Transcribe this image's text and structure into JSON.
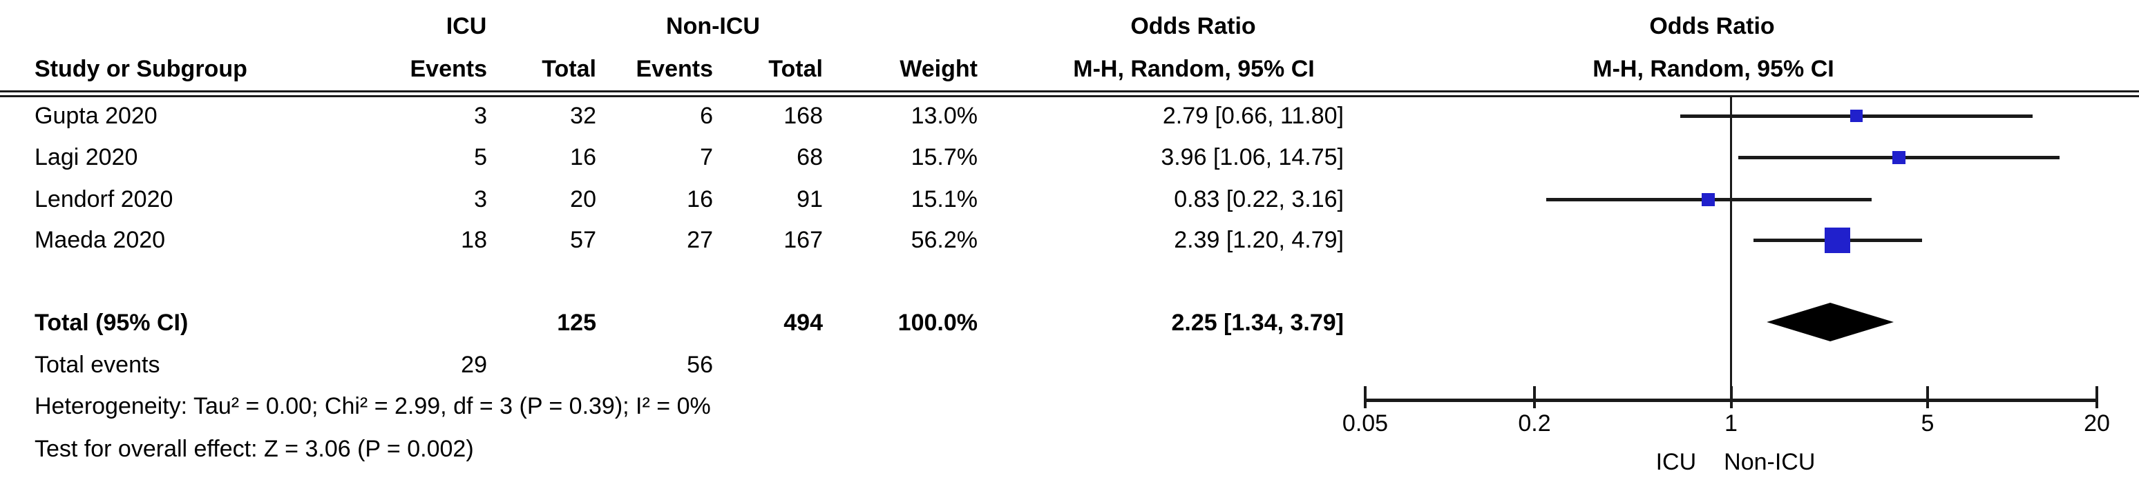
{
  "figure": {
    "description_label": "Forest plot of odds ratios, ICU vs Non-ICU"
  },
  "colors": {
    "marker_blue": "#2020CC",
    "line_black": "#1A1A1A",
    "diamond_black": "#000000",
    "background": "#FFFFFF"
  },
  "table": {
    "group_headers": {
      "icu": "ICU",
      "non_icu": "Non-ICU",
      "or_text": "Odds Ratio",
      "or_plot": "Odds Ratio"
    },
    "col_headers": {
      "study": "Study or Subgroup",
      "icu_events": "Events",
      "icu_total": "Total",
      "nonicu_events": "Events",
      "nonicu_total": "Total",
      "weight": "Weight",
      "mh_text": "M-H, Random, 95% CI",
      "mh_plot": "M-H, Random, 95% CI"
    },
    "rows": [
      {
        "study": "Gupta 2020",
        "icu_events": "3",
        "icu_total": "32",
        "nonicu_events": "6",
        "nonicu_total": "168",
        "weight": "13.0%",
        "or_ci": "2.79 [0.66, 11.80]"
      },
      {
        "study": "Lagi 2020",
        "icu_events": "5",
        "icu_total": "16",
        "nonicu_events": "7",
        "nonicu_total": "68",
        "weight": "15.7%",
        "or_ci": "3.96 [1.06, 14.75]"
      },
      {
        "study": "Lendorf 2020",
        "icu_events": "3",
        "icu_total": "20",
        "nonicu_events": "16",
        "nonicu_total": "91",
        "weight": "15.1%",
        "or_ci": "0.83 [0.22, 3.16]"
      },
      {
        "study": "Maeda 2020",
        "icu_events": "18",
        "icu_total": "57",
        "nonicu_events": "27",
        "nonicu_total": "167",
        "weight": "56.2%",
        "or_ci": "2.39 [1.20, 4.79]"
      }
    ],
    "total_row": {
      "label": "Total (95% CI)",
      "icu_total": "125",
      "nonicu_total": "494",
      "weight": "100.0%",
      "or_ci": "2.25 [1.34, 3.79]"
    },
    "total_events_row": {
      "label": "Total events",
      "icu_events": "29",
      "nonicu_events": "56"
    },
    "heterogeneity": "Heterogeneity: Tau² = 0.00; Chi² = 2.99, df = 3 (P = 0.39); I² = 0%",
    "overall_effect": "Test for overall effect: Z = 3.06 (P = 0.002)"
  },
  "chart_data": {
    "type": "forest",
    "effect_measure": "Odds Ratio",
    "model": "M-H, Random, 95% CI",
    "scale": "log",
    "axis": {
      "range": [
        0.05,
        20
      ],
      "ticks": [
        0.05,
        0.2,
        1,
        5,
        20
      ],
      "no_effect_line": 1,
      "group_left": "ICU",
      "group_right": "Non-ICU"
    },
    "studies": [
      {
        "name": "Gupta 2020",
        "icu_events": 3,
        "icu_total": 32,
        "nonicu_events": 6,
        "nonicu_total": 168,
        "weight_pct": 13.0,
        "or": 2.79,
        "ci_low": 0.66,
        "ci_high": 11.8
      },
      {
        "name": "Lagi 2020",
        "icu_events": 5,
        "icu_total": 16,
        "nonicu_events": 7,
        "nonicu_total": 68,
        "weight_pct": 15.7,
        "or": 3.96,
        "ci_low": 1.06,
        "ci_high": 14.75
      },
      {
        "name": "Lendorf 2020",
        "icu_events": 3,
        "icu_total": 20,
        "nonicu_events": 16,
        "nonicu_total": 91,
        "weight_pct": 15.1,
        "or": 0.83,
        "ci_low": 0.22,
        "ci_high": 3.16
      },
      {
        "name": "Maeda 2020",
        "icu_events": 18,
        "icu_total": 57,
        "nonicu_events": 27,
        "nonicu_total": 167,
        "weight_pct": 56.2,
        "or": 2.39,
        "ci_low": 1.2,
        "ci_high": 4.79
      }
    ],
    "total": {
      "label": "Total (95% CI)",
      "icu_total": 125,
      "nonicu_total": 494,
      "weight_pct": 100.0,
      "or": 2.25,
      "ci_low": 1.34,
      "ci_high": 3.79
    },
    "total_events": {
      "icu": 29,
      "non_icu": 56
    },
    "heterogeneity": {
      "tau2": 0.0,
      "chi2": 2.99,
      "df": 3,
      "p": 0.39,
      "i2_pct": 0
    },
    "overall_effect": {
      "z": 3.06,
      "p": 0.002
    }
  }
}
